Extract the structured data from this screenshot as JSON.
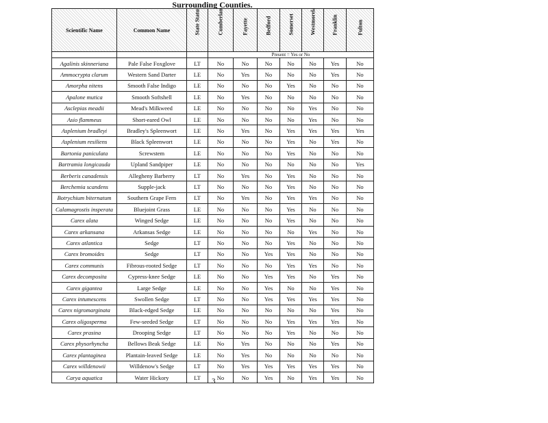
{
  "title": "Surrounding Counties.",
  "table": {
    "headers": [
      "Scientific Name",
      "Common Name",
      "State Status",
      "Cumberland",
      "Fayette",
      "Bedford",
      "Somerset",
      "Westmoreland",
      "Franklin",
      "Fulton"
    ],
    "subheader": "Present = Yes or No",
    "rows": [
      [
        "Agalinis skinneriana",
        "Pale False Foxglove",
        "LT",
        "No",
        "No",
        "No",
        "No",
        "No",
        "Yes",
        "No"
      ],
      [
        "Ammocrypta clarum",
        "Western Sand Darter",
        "LE",
        "No",
        "Yes",
        "No",
        "No",
        "No",
        "Yes",
        "No"
      ],
      [
        "Amorpha nitens",
        "Smooth False Indigo",
        "LE",
        "No",
        "No",
        "No",
        "Yes",
        "No",
        "No",
        "No"
      ],
      [
        "Apalone mutica",
        "Smooth Softshell",
        "LE",
        "No",
        "Yes",
        "No",
        "No",
        "No",
        "No",
        "No"
      ],
      [
        "Asclepias meadii",
        "Mead's Milkweed",
        "LE",
        "No",
        "No",
        "No",
        "No",
        "Yes",
        "No",
        "No"
      ],
      [
        "Asio flammeus",
        "Short-eared Owl",
        "LE",
        "No",
        "No",
        "No",
        "No",
        "Yes",
        "No",
        "No"
      ],
      [
        "Asplenium bradleyi",
        "Bradley's Spleenwort",
        "LE",
        "No",
        "Yes",
        "No",
        "Yes",
        "Yes",
        "Yes",
        "Yes"
      ],
      [
        "Asplenium resiliens",
        "Black Spleenwort",
        "LE",
        "No",
        "No",
        "No",
        "Yes",
        "No",
        "Yes",
        "No"
      ],
      [
        "Bartonia paniculata",
        "Screwstem",
        "LE",
        "No",
        "No",
        "No",
        "Yes",
        "No",
        "No",
        "No"
      ],
      [
        "Bartramia longicauda",
        "Upland Sandpiper",
        "LE",
        "No",
        "No",
        "No",
        "No",
        "No",
        "No",
        "Yes"
      ],
      [
        "Berberis canadensis",
        "Allegheny Barberry",
        "LT",
        "No",
        "Yes",
        "No",
        "Yes",
        "No",
        "No",
        "No"
      ],
      [
        "Berchemia scandens",
        "Supple-jack",
        "LT",
        "No",
        "No",
        "No",
        "Yes",
        "No",
        "No",
        "No"
      ],
      [
        "Botrychium biternatum",
        "Southern Grape Fern",
        "LT",
        "No",
        "Yes",
        "No",
        "Yes",
        "Yes",
        "No",
        "No"
      ],
      [
        "Calamagrostis insperata",
        "Bluejoint Grass",
        "LE",
        "No",
        "No",
        "No",
        "Yes",
        "No",
        "No",
        "No"
      ],
      [
        "Carex alata",
        "Winged Sedge",
        "LE",
        "No",
        "No",
        "No",
        "Yes",
        "No",
        "No",
        "No"
      ],
      [
        "Carex arkansana",
        "Arkansas Sedge",
        "LE",
        "No",
        "No",
        "No",
        "No",
        "Yes",
        "No",
        "No"
      ],
      [
        "Carex atlantica",
        "Sedge",
        "LT",
        "No",
        "No",
        "No",
        "Yes",
        "No",
        "No",
        "No"
      ],
      [
        "Carex bromoides",
        "Sedge",
        "LT",
        "No",
        "No",
        "Yes",
        "Yes",
        "No",
        "No",
        "No"
      ],
      [
        "Carex communis",
        "Fibrous-rooted Sedge",
        "LT",
        "No",
        "No",
        "No",
        "Yes",
        "Yes",
        "No",
        "No"
      ],
      [
        "Carex decomposita",
        "Cypress-knee Sedge",
        "LE",
        "No",
        "No",
        "Yes",
        "Yes",
        "No",
        "Yes",
        "No"
      ],
      [
        "Carex gigantea",
        "Large Sedge",
        "LE",
        "No",
        "No",
        "Yes",
        "No",
        "No",
        "Yes",
        "No"
      ],
      [
        "Carex intumescens",
        "Swollen Sedge",
        "LT",
        "No",
        "No",
        "Yes",
        "Yes",
        "Yes",
        "Yes",
        "No"
      ],
      [
        "Carex nigromarginata",
        "Black-edged Sedge",
        "LE",
        "No",
        "No",
        "No",
        "No",
        "No",
        "Yes",
        "No"
      ],
      [
        "Carex oligosperma",
        "Few-seeded Sedge",
        "LT",
        "No",
        "No",
        "No",
        "Yes",
        "Yes",
        "Yes",
        "No"
      ],
      [
        "Carex prasina",
        "Drooping Sedge",
        "LT",
        "No",
        "No",
        "No",
        "Yes",
        "No",
        "No",
        "No"
      ],
      [
        "Carex physorhyncha",
        "Bellows Beak Sedge",
        "LE",
        "No",
        "Yes",
        "No",
        "No",
        "No",
        "Yes",
        "No"
      ],
      [
        "Carex plantaginea",
        "Plantain-leaved Sedge",
        "LE",
        "No",
        "Yes",
        "No",
        "No",
        "No",
        "No",
        "No"
      ],
      [
        "Carex willdenowii",
        "Willdenow's Sedge",
        "LT",
        "No",
        "Yes",
        "Yes",
        "Yes",
        "Yes",
        "Yes",
        "No"
      ],
      [
        "Carya aquatica",
        "Water Hickory",
        "LT",
        "No",
        "No",
        "Yes",
        "No",
        "Yes",
        "Yes",
        "No"
      ]
    ]
  },
  "page_number": "3"
}
